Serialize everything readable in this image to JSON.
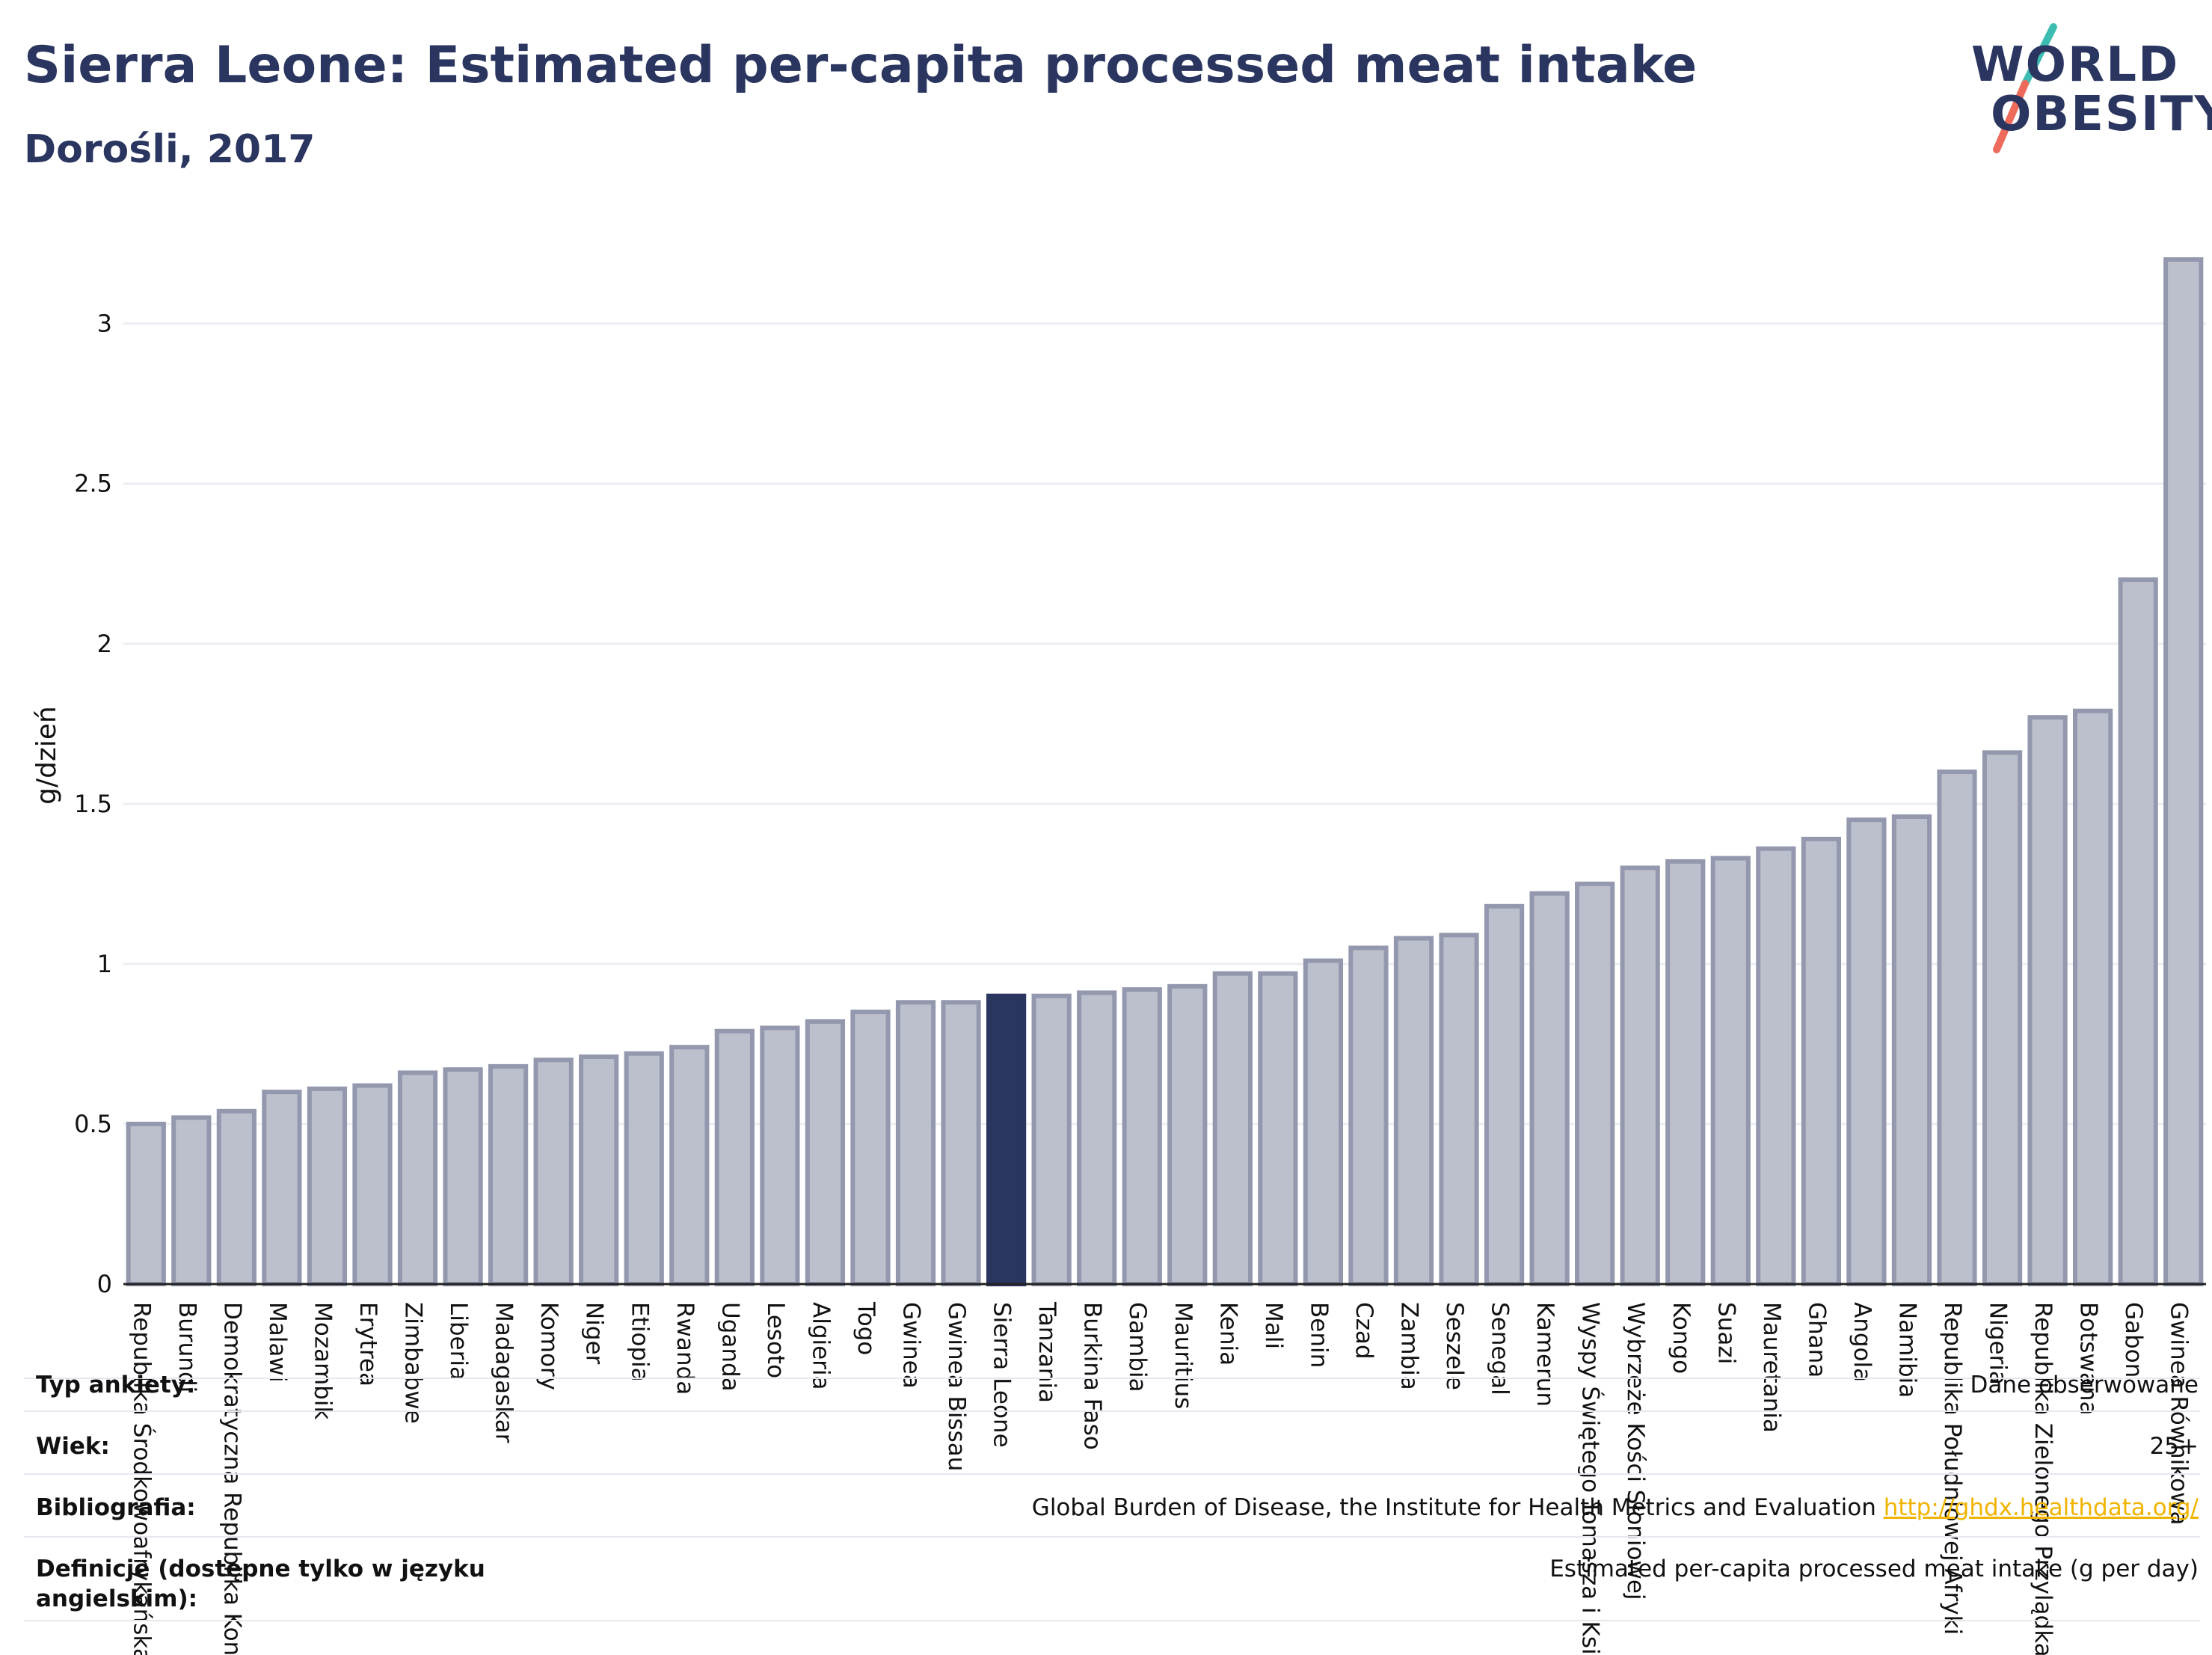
{
  "header": {
    "title": "Sierra Leone: Estimated per-capita processed meat intake",
    "subtitle": "Dorośli, 2017"
  },
  "logo": {
    "line1": "WORLD",
    "line2": "OBESITY",
    "colors": {
      "text": "#2a3560",
      "slash_top": "#3dbdb1",
      "slash_bottom": "#ee6a5a"
    }
  },
  "colors": {
    "bar_fill": "#bcc0cd",
    "bar_stroke": "#9398ae",
    "highlight_fill": "#2a3560",
    "grid": "#eceef3",
    "axis_text": "#111111"
  },
  "chart_data": {
    "type": "bar",
    "ylabel": "g/dzień",
    "ylim": [
      0,
      3.2
    ],
    "yticks": [
      0,
      0.5,
      1,
      1.5,
      2,
      2.5,
      3
    ],
    "ytick_labels": [
      "0",
      "0.5",
      "1",
      "1.5",
      "2",
      "2.5",
      "3"
    ],
    "grid": true,
    "highlight": "Sierra Leone",
    "categories": [
      "Republika Środkowoafrykańska",
      "Burundi",
      "Demokratyczna Republika Konga",
      "Malawi",
      "Mozambik",
      "Erytrea",
      "Zimbabwe",
      "Liberia",
      "Madagaskar",
      "Komory",
      "Niger",
      "Etiopia",
      "Rwanda",
      "Uganda",
      "Lesoto",
      "Algieria",
      "Togo",
      "Gwinea",
      "Gwinea Bissau",
      "Sierra Leone",
      "Tanzania",
      "Burkina Faso",
      "Gambia",
      "Mauritius",
      "Kenia",
      "Mali",
      "Benin",
      "Czad",
      "Zambia",
      "Seszele",
      "Senegal",
      "Kamerun",
      "Wyspy Świętego Tomasza i Książęca",
      "Wybrzeże Kości Słoniowej",
      "Kongo",
      "Suazi",
      "Mauretania",
      "Ghana",
      "Angola",
      "Namibia",
      "Republika Południowej Afryki",
      "Nigeria",
      "Republika Zielonego Przylądka",
      "Botswana",
      "Gabon",
      "Gwinea Równikowa"
    ],
    "values": [
      0.5,
      0.52,
      0.54,
      0.6,
      0.61,
      0.62,
      0.66,
      0.67,
      0.68,
      0.7,
      0.71,
      0.72,
      0.74,
      0.79,
      0.8,
      0.82,
      0.85,
      0.88,
      0.88,
      0.9,
      0.9,
      0.91,
      0.92,
      0.93,
      0.97,
      0.97,
      1.01,
      1.05,
      1.08,
      1.09,
      1.18,
      1.22,
      1.25,
      1.3,
      1.32,
      1.33,
      1.36,
      1.39,
      1.45,
      1.46,
      1.6,
      1.66,
      1.77,
      1.79,
      2.2,
      3.2
    ]
  },
  "info_table": {
    "rows": [
      {
        "label": "Typ ankiety:",
        "value": "Dane obserwowane"
      },
      {
        "label": "Wiek:",
        "value": "25+"
      },
      {
        "label": "Bibliografia:",
        "value": "Global Burden of Disease, the Institute for Health Metrics and Evaluation",
        "link": "http://ghdx.healthdata.org/"
      },
      {
        "label": "Definicje (dostępne tylko w języku angielskim):",
        "value": "Estimated per-capita processed meat intake (g per day)"
      }
    ]
  }
}
